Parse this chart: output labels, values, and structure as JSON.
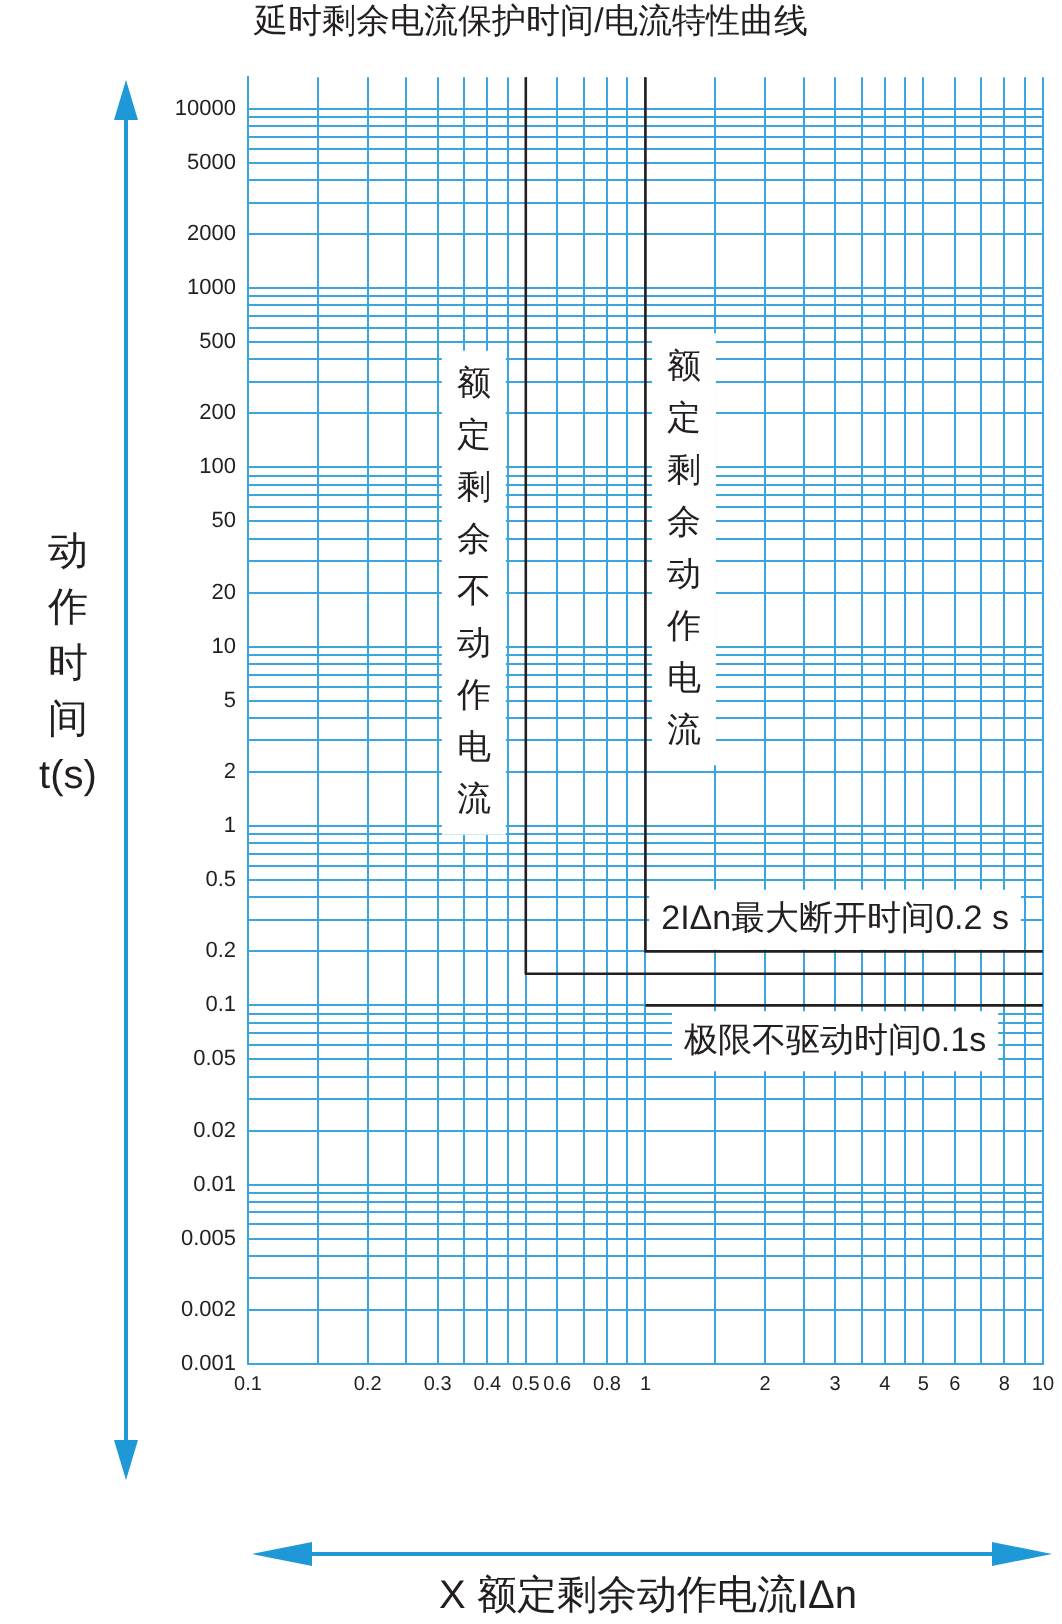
{
  "chart_data": {
    "type": "line",
    "title": "延时剩余电流保护时间/电流特性曲线",
    "xlabel": "X 额定剩余动作电流IΔn",
    "ylabel": "动作时间t(s)",
    "xlim": [
      0.1,
      10
    ],
    "ylim": [
      0.001,
      15000
    ],
    "log": "xy",
    "grid": true,
    "legend": false,
    "marker": "none",
    "line_style": "solid",
    "xticks": [
      0.1,
      {
        "value": 0.15,
        "label": null
      },
      0.2,
      {
        "value": 0.25,
        "label": null
      },
      0.3,
      {
        "value": 0.35,
        "label": null
      },
      0.4,
      {
        "value": 0.45,
        "label": null
      },
      0.5,
      0.6,
      {
        "value": 0.7,
        "label": null
      },
      0.8,
      {
        "value": 0.9,
        "label": null
      },
      1,
      {
        "value": 1.5,
        "label": null
      },
      2,
      {
        "value": 2.5,
        "label": null
      },
      3,
      {
        "value": 3.5,
        "label": null
      },
      4,
      {
        "value": 4.5,
        "label": null
      },
      5,
      6,
      {
        "value": 7,
        "label": null
      },
      8,
      {
        "value": 9,
        "label": null
      },
      10
    ],
    "yticks": [
      0.001,
      0.002,
      {
        "value": 0.003,
        "label": null
      },
      {
        "value": 0.004,
        "label": null
      },
      0.005,
      {
        "value": 0.006,
        "label": null
      },
      {
        "value": 0.007,
        "label": null
      },
      {
        "value": 0.008,
        "label": null
      },
      {
        "value": 0.009,
        "label": null
      },
      0.01,
      0.02,
      {
        "value": 0.03,
        "label": null
      },
      {
        "value": 0.04,
        "label": null
      },
      0.05,
      {
        "value": 0.06,
        "label": null
      },
      {
        "value": 0.07,
        "label": null
      },
      {
        "value": 0.08,
        "label": null
      },
      {
        "value": 0.09,
        "label": null
      },
      0.1,
      0.2,
      {
        "value": 0.3,
        "label": null
      },
      {
        "value": 0.4,
        "label": null
      },
      0.5,
      {
        "value": 0.6,
        "label": null
      },
      {
        "value": 0.7,
        "label": null
      },
      {
        "value": 0.8,
        "label": null
      },
      {
        "value": 0.9,
        "label": null
      },
      1,
      2,
      {
        "value": 3,
        "label": null
      },
      {
        "value": 4,
        "label": null
      },
      5,
      {
        "value": 6,
        "label": null
      },
      {
        "value": 7,
        "label": null
      },
      {
        "value": 8,
        "label": null
      },
      {
        "value": 9,
        "label": null
      },
      10,
      20,
      {
        "value": 30,
        "label": null
      },
      {
        "value": 40,
        "label": null
      },
      50,
      {
        "value": 60,
        "label": null
      },
      {
        "value": 70,
        "label": null
      },
      {
        "value": 80,
        "label": null
      },
      {
        "value": 90,
        "label": null
      },
      100,
      200,
      {
        "value": 300,
        "label": null
      },
      {
        "value": 400,
        "label": null
      },
      500,
      {
        "value": 600,
        "label": null
      },
      {
        "value": 700,
        "label": null
      },
      {
        "value": 800,
        "label": null
      },
      {
        "value": 900,
        "label": null
      },
      1000,
      2000,
      {
        "value": 3000,
        "label": null
      },
      {
        "value": 4000,
        "label": null
      },
      5000,
      {
        "value": 6000,
        "label": null
      },
      {
        "value": 7000,
        "label": null
      },
      {
        "value": 8000,
        "label": null
      },
      {
        "value": 9000,
        "label": null
      },
      10000
    ],
    "series": [
      {
        "color": "#231f20",
        "x": [
          0.5,
          0.5,
          10
        ],
        "values": [
          15000,
          0.15,
          0.15
        ]
      },
      {
        "color": "#231f20",
        "x": [
          1,
          1,
          10
        ],
        "values": [
          15000,
          0.2,
          0.2
        ]
      },
      {
        "color": "#231f20",
        "x": [
          1,
          10
        ],
        "values": [
          0.1,
          0.1
        ]
      }
    ],
    "annotations": [
      "额定剩余不动作电流",
      "额定剩余动作电流",
      "2IΔn最大断开时间0.2 s",
      "极限不驱动时间0.1s"
    ]
  }
}
